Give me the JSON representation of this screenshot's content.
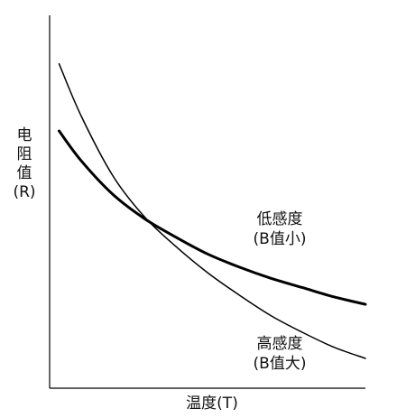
{
  "chart_data": {
    "type": "line",
    "xlabel": "温度(T)",
    "ylabel_lines": [
      "电",
      "阻",
      "值",
      "(R)"
    ],
    "grid": false,
    "legend": "none",
    "xlim": [
      0,
      100
    ],
    "ylim": [
      0,
      100
    ],
    "series": [
      {
        "key": "low",
        "annotation_lines": [
          "低感度",
          "(B值小)"
        ],
        "line_width": 3,
        "color": "#000000",
        "x": [
          3,
          10,
          20,
          30,
          40,
          50,
          60,
          70,
          80,
          90,
          100
        ],
        "y": [
          69,
          61,
          52,
          45.5,
          40.5,
          36,
          32.5,
          29.5,
          27,
          24.5,
          22.5
        ]
      },
      {
        "key": "high",
        "annotation_lines": [
          "高感度",
          "(B值大)"
        ],
        "line_width": 1.5,
        "color": "#000000",
        "x": [
          3,
          10,
          20,
          30,
          40,
          50,
          60,
          70,
          80,
          90,
          100
        ],
        "y": [
          87,
          73,
          57,
          46,
          38,
          31,
          25,
          19.5,
          15,
          11,
          8
        ]
      }
    ]
  }
}
